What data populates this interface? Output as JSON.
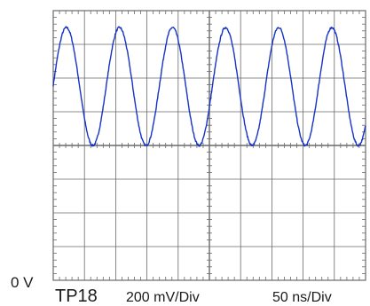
{
  "labels": {
    "ground_marker": "0 V",
    "probe": "TP18",
    "vertical_scale": "200 mV/Div",
    "time_scale": "50 ns/Div"
  },
  "colors": {
    "trace": "#1533c8",
    "grid": "#6a6a6a",
    "background": "#ffffff"
  },
  "chart_data": {
    "type": "line",
    "grid": {
      "x_divisions": 10,
      "y_divisions": 8,
      "minor_ticks_per_division": 5
    },
    "x_unit": "ns",
    "y_unit": "mV",
    "x_per_div": 50,
    "y_per_div": 200,
    "xlim": [
      0,
      500
    ],
    "ylim": [
      0,
      1600
    ],
    "series": [
      {
        "waveform": "sine",
        "offset_mV": 1150,
        "amplitude_mV": 350,
        "period_ns": 85,
        "peak_time_ns": 21,
        "noise_mV": 6
      }
    ]
  }
}
